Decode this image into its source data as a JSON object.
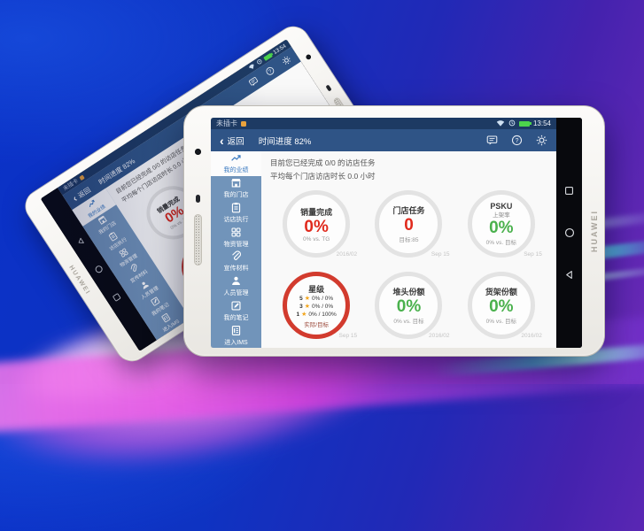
{
  "brand": "HUAWEI",
  "status_bar": {
    "sim_text": "未插卡",
    "time": "13:54"
  },
  "nav_bar": {
    "back": "返回",
    "title": "时间进度 82%"
  },
  "summary_lines": [
    "目前您已经完成 0/0 的访店任务",
    "平均每个门店访店时长 0.0 小时"
  ],
  "sidebar": [
    {
      "id": "performance",
      "label": "我的业绩",
      "icon": "chart-icon",
      "active": true
    },
    {
      "id": "stores",
      "label": "我的门店",
      "icon": "store-icon",
      "active": false
    },
    {
      "id": "visits",
      "label": "访店执行",
      "icon": "clipboard-icon",
      "active": false
    },
    {
      "id": "materials",
      "label": "物资管理",
      "icon": "grid-icon",
      "active": false
    },
    {
      "id": "promo-materials",
      "label": "宣传材料",
      "icon": "paperclip-icon",
      "active": false
    },
    {
      "id": "people",
      "label": "人员管理",
      "icon": "person-icon",
      "active": false
    },
    {
      "id": "notes",
      "label": "我的笔记",
      "icon": "note-icon",
      "active": false
    },
    {
      "id": "ims",
      "label": "进入IMS",
      "icon": "doc-icon",
      "active": false
    }
  ],
  "metrics": [
    {
      "id": "sales-completion",
      "title": "销量完成",
      "value": "0%",
      "value_color": "red",
      "sub": "0% vs. TG",
      "date": "2016/02",
      "highlight": false
    },
    {
      "id": "store-tasks",
      "title": "门店任务",
      "value": "0",
      "value_color": "red",
      "sub": "目标:85",
      "date": "Sep 15",
      "highlight": false
    },
    {
      "id": "psku",
      "title": "PSKU",
      "subtitle": "上架率",
      "value": "0%",
      "value_color": "green",
      "sub": "0% vs. 目标",
      "date": "Sep 15",
      "highlight": false
    },
    {
      "id": "star-rating",
      "title": "星级",
      "highlight": true,
      "date": "Sep 15",
      "rows": [
        {
          "num": "5",
          "star": "★",
          "values": "0% / 0%"
        },
        {
          "num": "3",
          "star": "★",
          "values": "0% / 0%"
        },
        {
          "num": "1",
          "star": "★",
          "values": "0% / 100%"
        }
      ],
      "footer": "实际/目标"
    },
    {
      "id": "display-share",
      "title": "堆头份额",
      "value": "0%",
      "value_color": "green",
      "sub": "0% vs. 目标",
      "date": "2016/02",
      "highlight": false
    },
    {
      "id": "shelf-share",
      "title": "货架份额",
      "value": "0%",
      "value_color": "green",
      "sub": "0% vs. 目标",
      "date": "2016/02",
      "highlight": false
    }
  ],
  "colors": {
    "accent_red": "#e02a1d",
    "accent_green": "#4ab14d",
    "star_yellow": "#f2a51c",
    "titlebar_blue": "#2f5486",
    "sidebar_blue": "#7194ba"
  }
}
